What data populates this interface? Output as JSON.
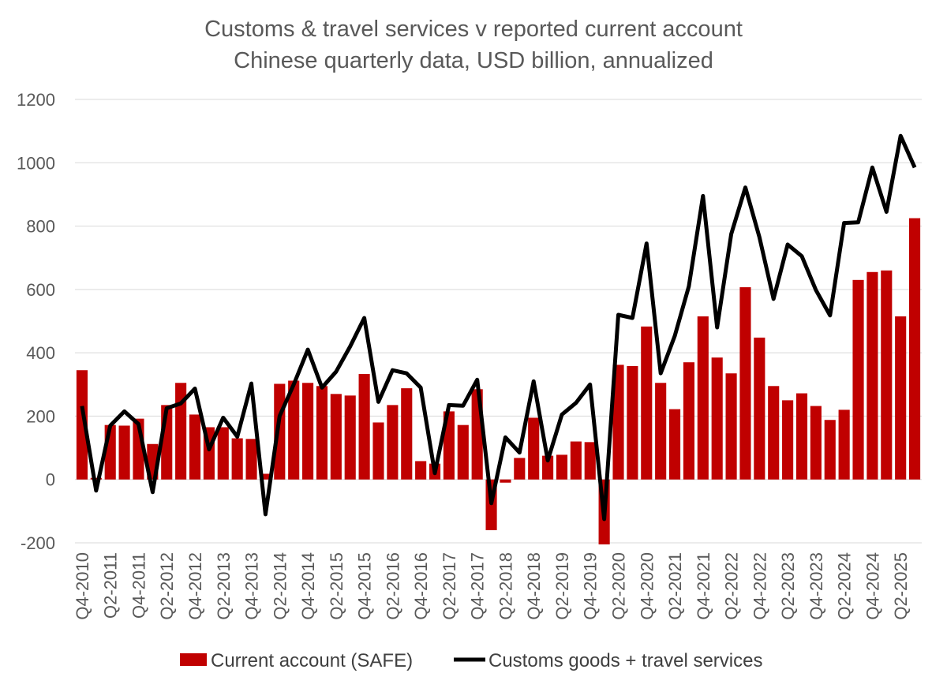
{
  "chart_data": {
    "type": "bar",
    "title": "Customs & travel services v reported current account",
    "subtitle": "Chinese quarterly data, USD billion, annualized",
    "xlabel": "",
    "ylabel": "",
    "ylim": [
      -200,
      1200
    ],
    "yticks": [
      -200,
      0,
      200,
      400,
      600,
      800,
      1000,
      1200
    ],
    "grid": true,
    "legend_position": "bottom",
    "colors": {
      "bar": "#c00000",
      "line": "#000000",
      "grid": "#d9d9d9",
      "text": "#595959"
    },
    "categories": [
      "Q4-2010",
      "Q1-2011",
      "Q2-2011",
      "Q3-2011",
      "Q4-2011",
      "Q1-2012",
      "Q2-2012",
      "Q3-2012",
      "Q4-2012",
      "Q1-2013",
      "Q2-2013",
      "Q3-2013",
      "Q4-2013",
      "Q1-2014",
      "Q2-2014",
      "Q3-2014",
      "Q4-2014",
      "Q1-2015",
      "Q2-2015",
      "Q3-2015",
      "Q4-2015",
      "Q1-2016",
      "Q2-2016",
      "Q3-2016",
      "Q4-2016",
      "Q1-2017",
      "Q2-2017",
      "Q3-2017",
      "Q4-2017",
      "Q1-2018",
      "Q2-2018",
      "Q3-2018",
      "Q4-2018",
      "Q1-2019",
      "Q2-2019",
      "Q3-2019",
      "Q4-2019",
      "Q1-2020",
      "Q2-2020",
      "Q3-2020",
      "Q4-2020",
      "Q1-2021",
      "Q2-2021",
      "Q3-2021",
      "Q4-2021",
      "Q1-2022",
      "Q2-2022",
      "Q3-2022",
      "Q4-2022",
      "Q1-2023",
      "Q2-2023",
      "Q3-2023",
      "Q4-2023",
      "Q1-2024",
      "Q2-2024",
      "Q3-2024",
      "Q4-2024",
      "Q1-2025",
      "Q2-2025",
      "Q3-2025"
    ],
    "tick_labels": [
      "Q4-2010",
      "Q2-2011",
      "Q4-2011",
      "Q2-2012",
      "Q4-2012",
      "Q2-2013",
      "Q4-2013",
      "Q2-2014",
      "Q4-2014",
      "Q2-2015",
      "Q4-2015",
      "Q2-2016",
      "Q4-2016",
      "Q2-2017",
      "Q4-2017",
      "Q2-2018",
      "Q4-2018",
      "Q2-2019",
      "Q4-2019",
      "Q2-2020",
      "Q4-2020",
      "Q2-2021",
      "Q4-2021",
      "Q2-2022",
      "Q4-2022",
      "Q2-2023",
      "Q4-2023",
      "Q2-2024",
      "Q4-2024",
      "Q2-2025"
    ],
    "series": [
      {
        "name": "Current account (SAFE)",
        "kind": "bar",
        "values": [
          345,
          5,
          172,
          170,
          192,
          112,
          235,
          305,
          205,
          165,
          165,
          130,
          128,
          18,
          302,
          312,
          305,
          295,
          270,
          265,
          333,
          180,
          235,
          288,
          58,
          50,
          215,
          172,
          285,
          -160,
          -10,
          68,
          195,
          75,
          78,
          120,
          118,
          -205,
          362,
          358,
          483,
          305,
          222,
          370,
          515,
          385,
          335,
          607,
          448,
          295,
          250,
          272,
          232,
          188,
          220,
          630,
          655,
          660,
          515,
          825
        ]
      },
      {
        "name": "Customs goods + travel services",
        "kind": "line",
        "values": [
          232,
          -35,
          170,
          215,
          175,
          -40,
          225,
          240,
          287,
          95,
          195,
          135,
          303,
          -110,
          200,
          300,
          410,
          290,
          340,
          420,
          510,
          245,
          345,
          335,
          290,
          20,
          235,
          233,
          315,
          -75,
          133,
          85,
          310,
          60,
          205,
          242,
          300,
          -125,
          520,
          510,
          745,
          335,
          453,
          610,
          895,
          480,
          775,
          922,
          765,
          570,
          742,
          705,
          598,
          518,
          810,
          812,
          985,
          845,
          1085,
          985
        ]
      }
    ]
  }
}
